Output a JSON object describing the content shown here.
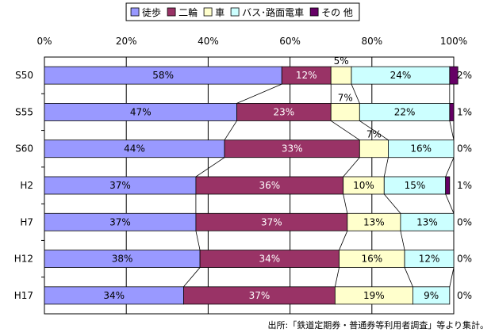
{
  "chart_data": {
    "type": "bar",
    "orientation": "horizontal",
    "stacked": true,
    "percent": true,
    "categories": [
      "S50",
      "S55",
      "S60",
      "H2",
      "H7",
      "H12",
      "H17"
    ],
    "series": [
      {
        "name": "徒歩",
        "color": "#9999FF",
        "values": [
          58,
          47,
          44,
          37,
          37,
          38,
          34
        ]
      },
      {
        "name": "二輪",
        "color": "#993366",
        "values": [
          12,
          23,
          33,
          36,
          37,
          34,
          37
        ]
      },
      {
        "name": "車",
        "color": "#FFFFCC",
        "values": [
          5,
          7,
          7,
          10,
          13,
          16,
          19
        ]
      },
      {
        "name": "バス･路面電車",
        "color": "#CCFFFF",
        "values": [
          24,
          22,
          16,
          15,
          13,
          12,
          9
        ]
      },
      {
        "name": "その 他",
        "color": "#660066",
        "values": [
          2,
          1,
          0,
          1,
          0,
          0,
          0
        ]
      }
    ],
    "value_labels": [
      [
        "58%",
        "12%",
        "5%",
        "24%",
        "2%"
      ],
      [
        "47%",
        "23%",
        "7%",
        "22%",
        "1%"
      ],
      [
        "44%",
        "33%",
        "7%",
        "16%",
        "0%"
      ],
      [
        "37%",
        "36%",
        "10%",
        "15%",
        "1%"
      ],
      [
        "37%",
        "37%",
        "13%",
        "13%",
        "0%"
      ],
      [
        "38%",
        "34%",
        "16%",
        "12%",
        "0%"
      ],
      [
        "34%",
        "37%",
        "19%",
        "9%",
        "0%"
      ]
    ],
    "xticks": [
      "0%",
      "20%",
      "40%",
      "60%",
      "80%",
      "100%"
    ],
    "xlim": [
      0,
      100
    ],
    "grid": true,
    "legend": "top",
    "series_lines": true
  },
  "source_note": "出所:「鉄道定期券・普通券等利用者調査」等より集計。"
}
